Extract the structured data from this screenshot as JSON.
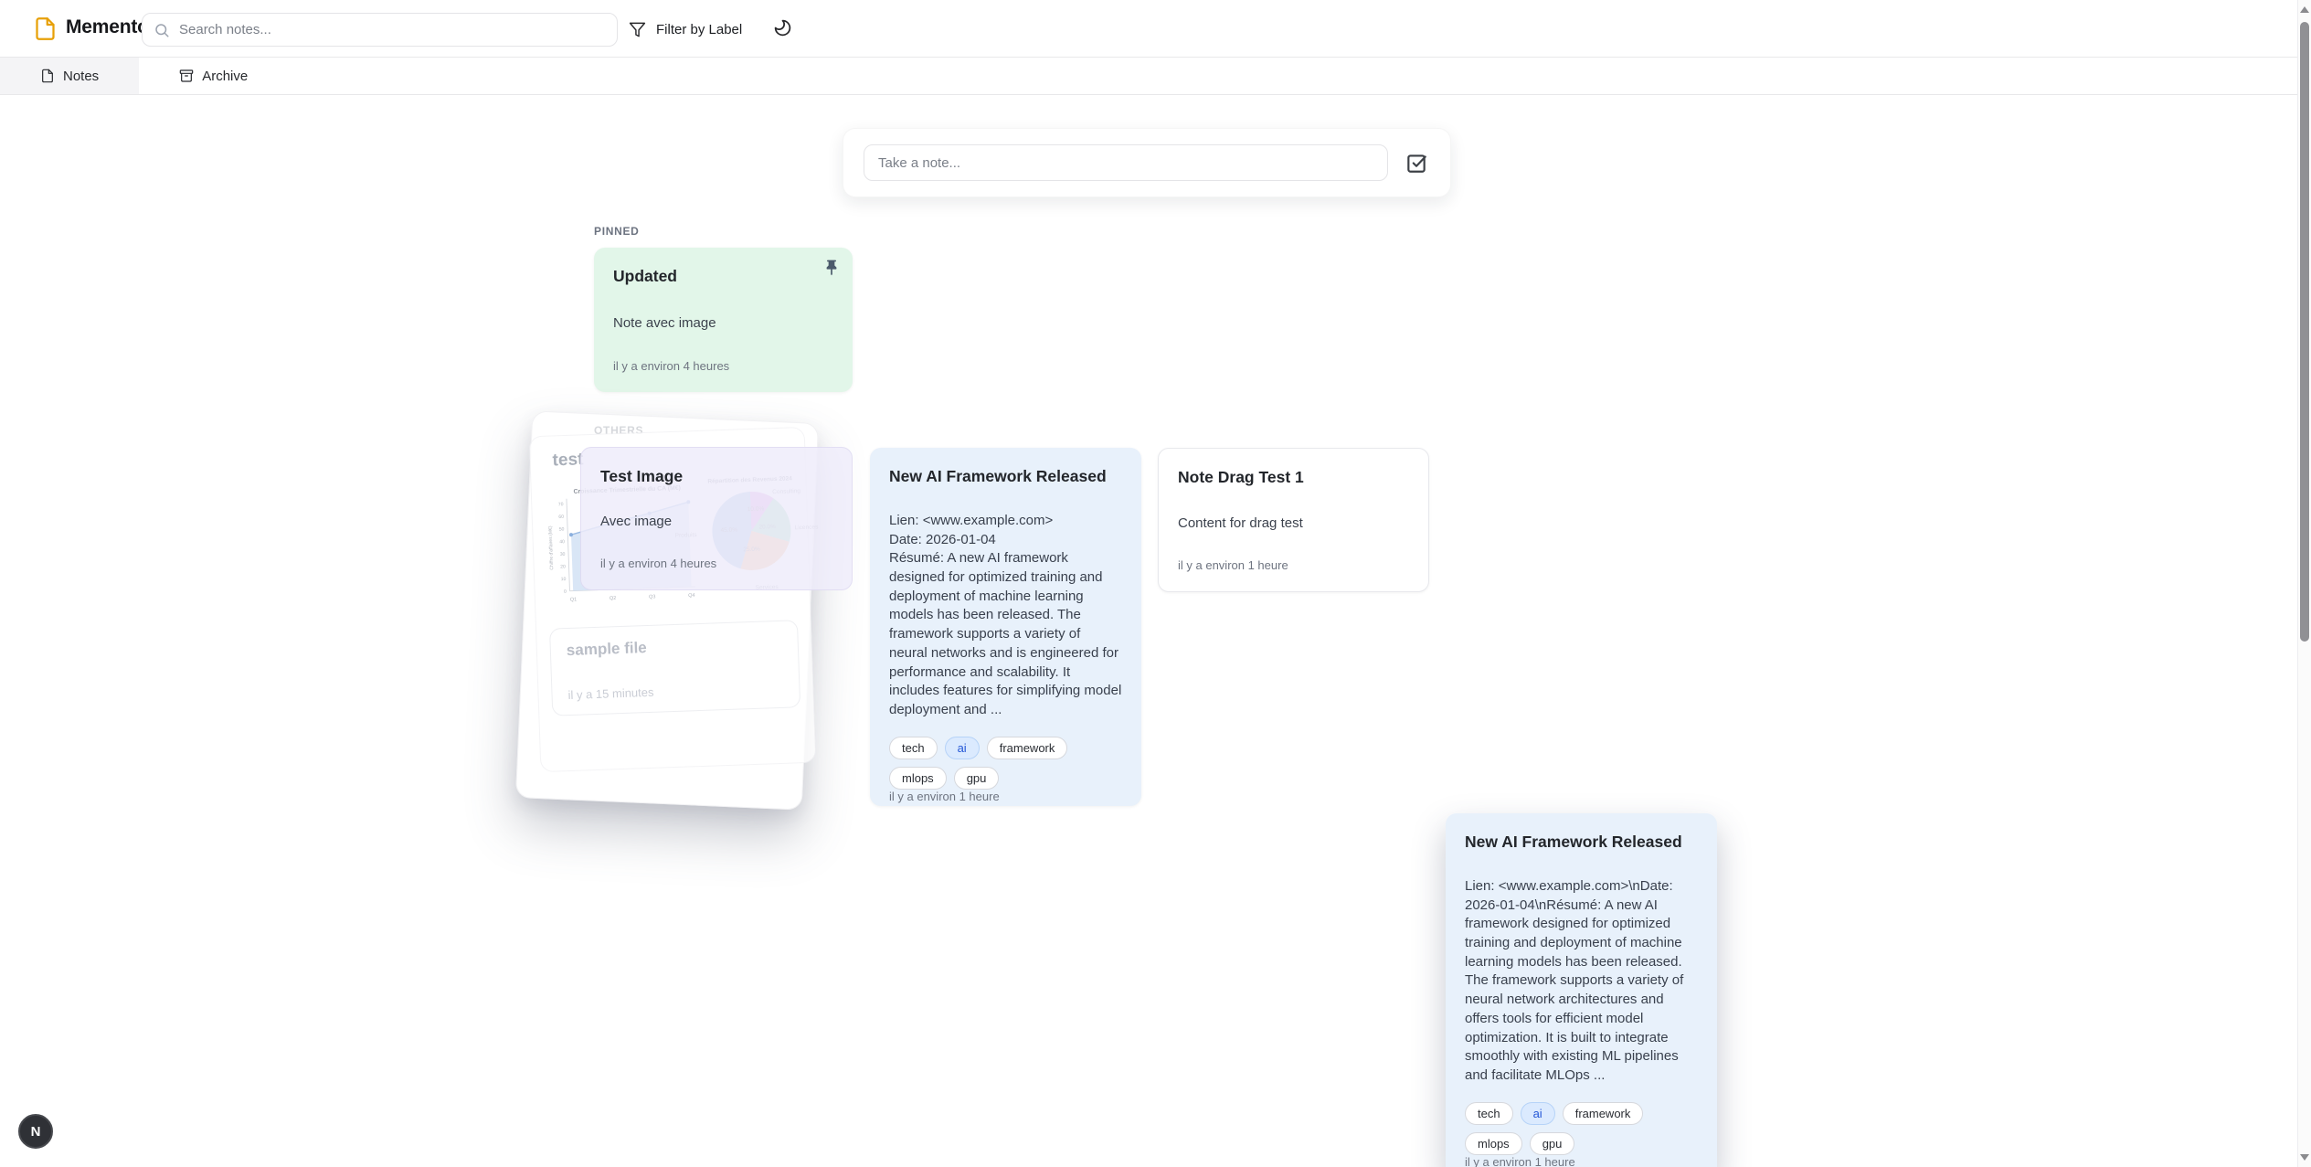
{
  "header": {
    "app_name": "Memento",
    "search_placeholder": "Search notes...",
    "filter_label": "Filter by Label"
  },
  "tabs": [
    {
      "label": "Notes",
      "active": true
    },
    {
      "label": "Archive",
      "active": false
    }
  ],
  "composer": {
    "placeholder": "Take a note..."
  },
  "sections": {
    "pinned": "PINNED",
    "others": "OTHERS"
  },
  "pinned_note": {
    "title": "Updated",
    "content": "Note avec image",
    "timestamp": "il y a environ 4 heures"
  },
  "drag_stack": {
    "note_title": "test",
    "sample_note": {
      "title": "sample file",
      "timestamp": "il y a 15 minutes"
    }
  },
  "overlay_note": {
    "title": "Test Image",
    "content": "Avec image",
    "timestamp": "il y a environ 4 heures"
  },
  "notes": [
    {
      "title": "New AI Framework Released",
      "content": "Lien: <www.example.com>\nDate: 2026-01-04\nRésumé: A new AI framework designed for optimized training and deployment of machine learning models has been released. The framework supports a variety of neural networks and is engineered for performance and scalability. It includes features for simplifying model deployment and ...",
      "tags": [
        "tech",
        "ai",
        "framework",
        "mlops",
        "gpu"
      ],
      "timestamp": "il y a environ 1 heure"
    },
    {
      "title": "Note Drag Test 1",
      "content": "Content for drag test",
      "timestamp": "il y a environ 1 heure"
    }
  ],
  "drag_preview_note": {
    "title": "New AI Framework Released",
    "content": "Lien: <www.example.com>\\nDate: 2026-01-04\\nRésumé: A new AI framework designed for optimized training and deployment of machine learning models has been released. The framework supports a variety of neural network architectures and offers tools for efficient model optimization. It is built to integrate smoothly with existing ML pipelines and facilitate MLOps ...",
    "tags": [
      "tech",
      "ai",
      "framework",
      "mlops",
      "gpu"
    ],
    "timestamp": "il y a environ 1 heure"
  },
  "avatar": {
    "initial": "N"
  },
  "colors": {
    "pinned_card_bg": "#e2f6e9",
    "blue_card_bg": "#e8f1fb",
    "overlay_card_bg": "#efecfa",
    "logo": "#e7a008",
    "ai_tag_text": "#2457d6"
  },
  "chart_data": [
    {
      "type": "area",
      "title": "Croissance Trimestrielle du CA (M€)",
      "ylabel": "Chiffre d'affaires (M€)",
      "xlabel": "",
      "categories": [
        "Q1",
        "Q2",
        "Q3",
        "Q4"
      ],
      "values": [
        45,
        53,
        60,
        68
      ],
      "ylim": [
        0,
        70
      ],
      "yticks": [
        0,
        10,
        20,
        30,
        40,
        50,
        60,
        70
      ],
      "grid": false,
      "line_color": "#7fa8dc",
      "fill_color": "#c3d8f1"
    },
    {
      "type": "pie",
      "title": "Répartition des Revenus 2024",
      "slices": [
        {
          "label": "Consulting",
          "value": 10,
          "pct": "10.0%",
          "color": "#d77fd8"
        },
        {
          "label": "Licences",
          "value": 20,
          "pct": "20.0%",
          "color": "#86d6ab"
        },
        {
          "label": "Services",
          "value": 25,
          "pct": "25.0%",
          "color": "#f2a66e"
        },
        {
          "label": "Produits",
          "value": 45,
          "pct": "45.0%",
          "color": "#88aede"
        }
      ]
    }
  ]
}
